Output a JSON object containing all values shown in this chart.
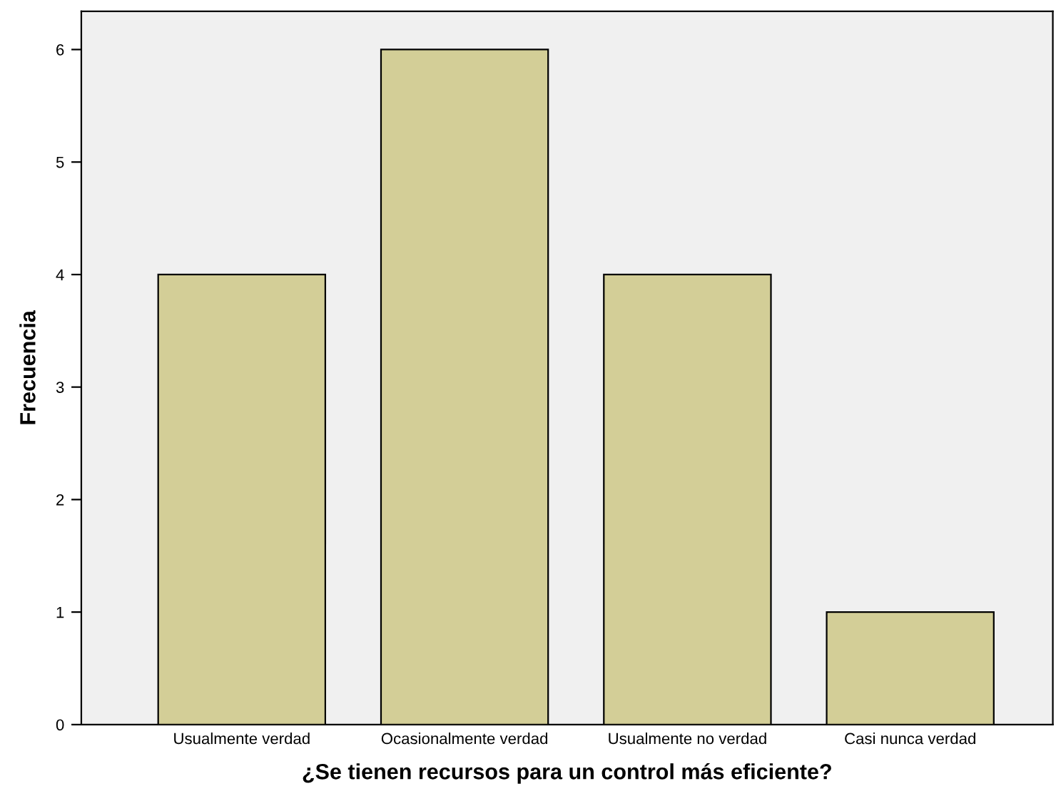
{
  "chart_data": {
    "type": "bar",
    "xlabel": "¿Se tienen recursos para un control más eficiente?",
    "ylabel": "Frecuencia",
    "categories": [
      "Usualmente verdad",
      "Ocasionalmente verdad",
      "Usualmente no verdad",
      "Casi nunca verdad"
    ],
    "values": [
      4,
      6,
      4,
      1
    ],
    "color": "#d3ce97",
    "ylim": [
      0,
      6.34
    ],
    "yticks": [
      0,
      1,
      2,
      3,
      4,
      5,
      6
    ],
    "grid": false
  }
}
